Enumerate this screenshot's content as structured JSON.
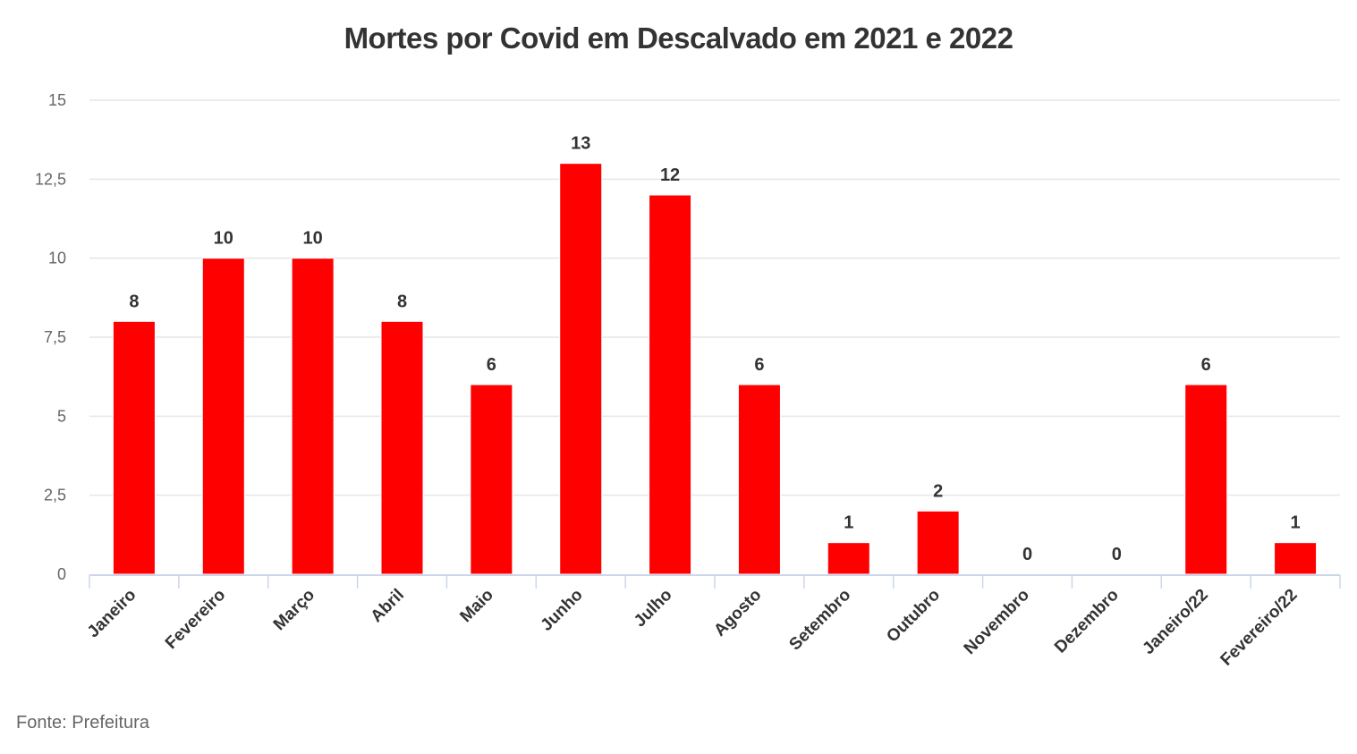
{
  "chart_data": {
    "type": "bar",
    "title": "Mortes por Covid em Descalvado em 2021 e 2022",
    "categories": [
      "Janeiro",
      "Fevereiro",
      "Março",
      "Abril",
      "Maio",
      "Junho",
      "Julho",
      "Agosto",
      "Setembro",
      "Outubro",
      "Novembro",
      "Dezembro",
      "Janeiro/22",
      "Fevereiro/22"
    ],
    "values": [
      8,
      10,
      10,
      8,
      6,
      13,
      12,
      6,
      1,
      2,
      0,
      0,
      6,
      1
    ],
    "data_labels": [
      "8",
      "10",
      "10",
      "8",
      "6",
      "13",
      "12",
      "6",
      "1",
      "2",
      "0",
      "0",
      "6",
      "1"
    ],
    "ylim": [
      0,
      15
    ],
    "y_ticks": [
      0,
      2.5,
      5,
      7.5,
      10,
      12.5,
      15
    ],
    "y_tick_labels": [
      "0",
      "2,5",
      "5",
      "7,5",
      "10",
      "12,5",
      "15"
    ],
    "grid": true,
    "bar_color": "#ff0000",
    "source": "Fonte: Prefeitura"
  }
}
